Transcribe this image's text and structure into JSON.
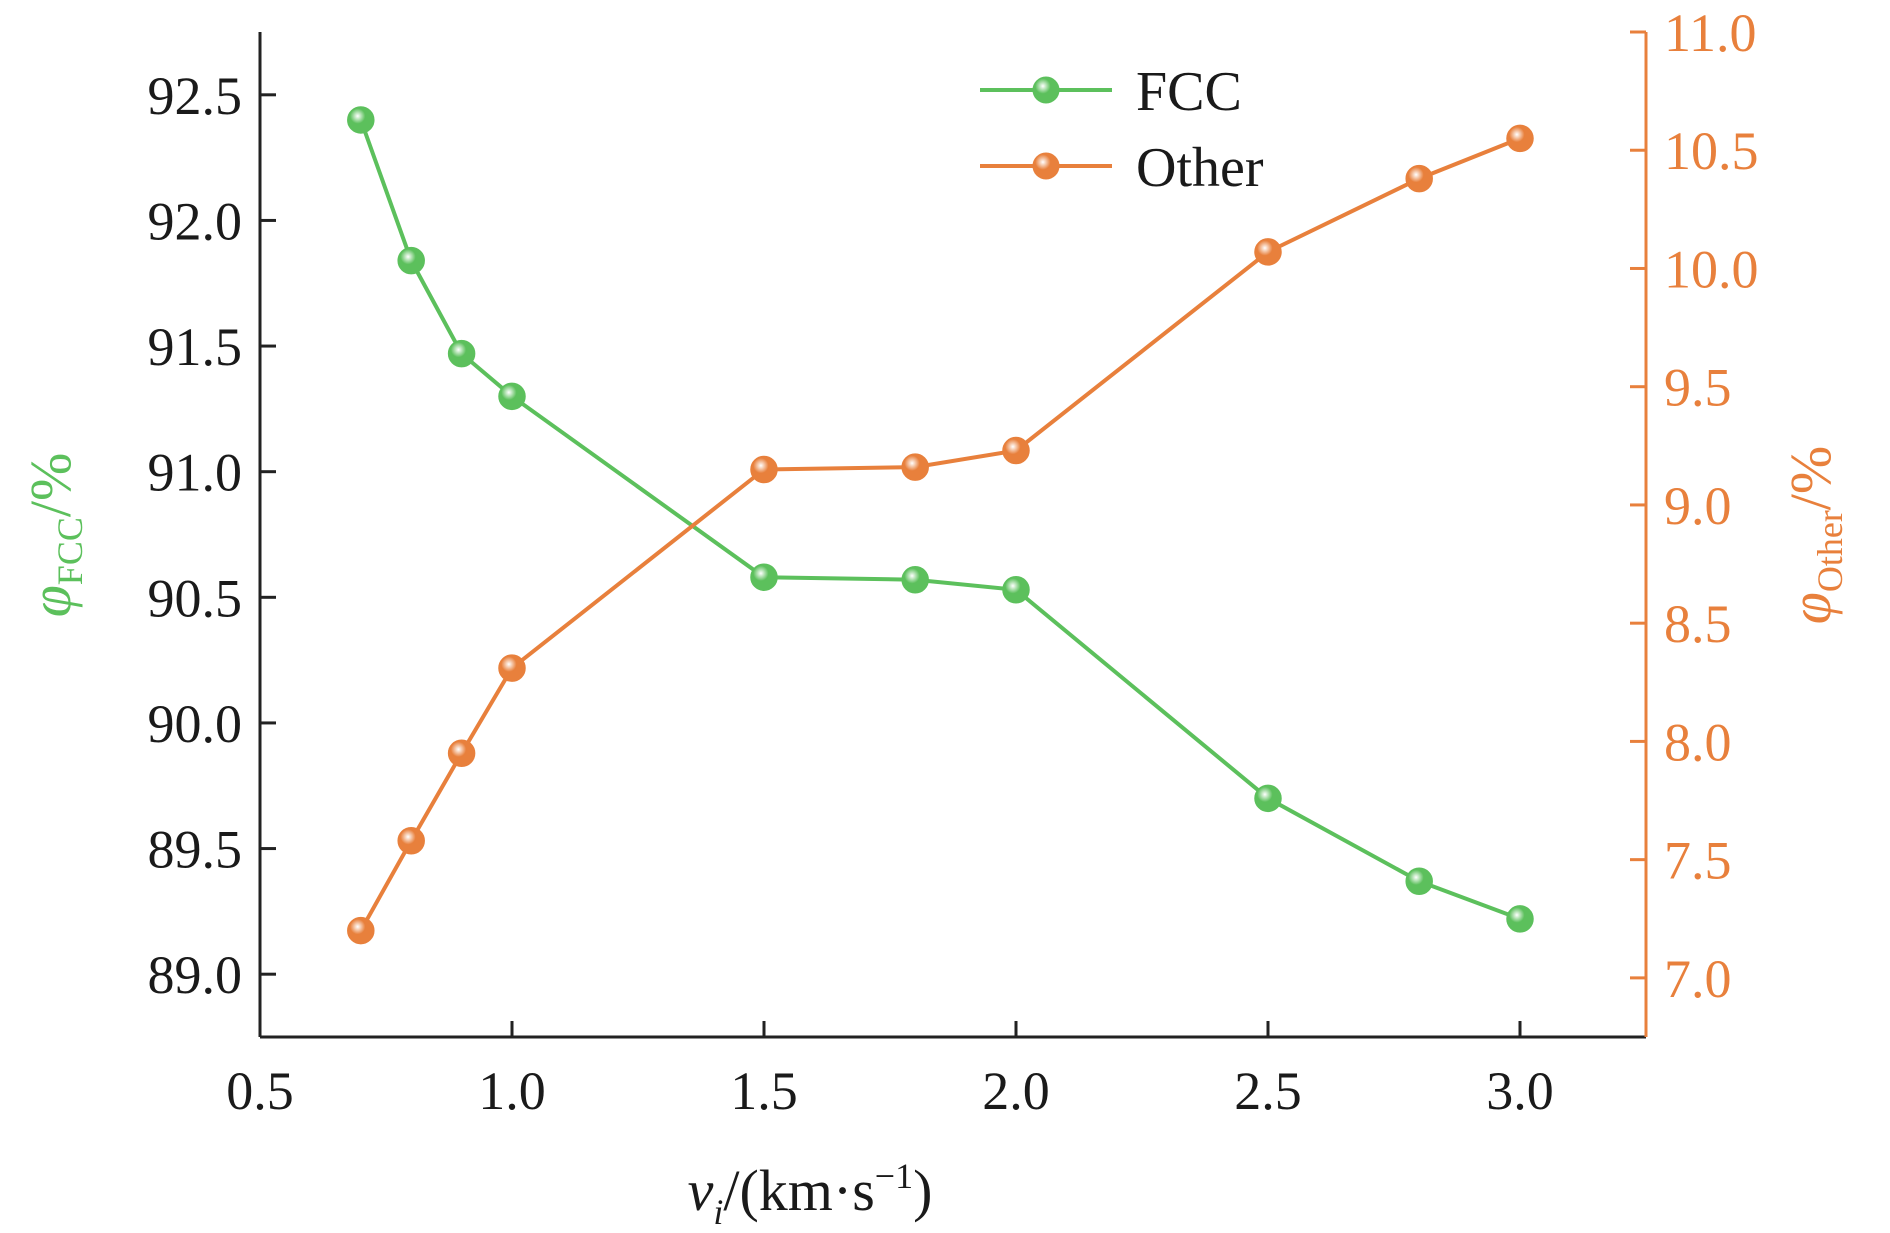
{
  "chart_data": {
    "type": "line",
    "x": [
      0.7,
      0.8,
      0.9,
      1.0,
      1.5,
      1.8,
      2.0,
      2.5,
      2.8,
      3.0
    ],
    "series": [
      {
        "name": "FCC",
        "axis": "left",
        "color": "#5cc05c",
        "values": [
          92.4,
          91.84,
          91.47,
          91.3,
          90.58,
          90.57,
          90.53,
          89.7,
          89.37,
          89.22
        ]
      },
      {
        "name": "Other",
        "axis": "right",
        "color": "#e8803c",
        "values": [
          7.2,
          7.58,
          7.95,
          8.31,
          9.15,
          9.16,
          9.23,
          10.07,
          10.38,
          10.55
        ]
      }
    ],
    "xlabel": {
      "var": "v",
      "sub": "i",
      "unit": "/(km·s",
      "sup": "−1",
      "close": ")"
    },
    "ylabel_left": {
      "var": "φ",
      "sub": "FCC",
      "unit": "/%"
    },
    "ylabel_right": {
      "var": "φ",
      "sub": "Other",
      "unit": "/%"
    },
    "xlim": [
      0.5,
      3.25
    ],
    "ylim_left": [
      88.75,
      92.75
    ],
    "ylim_right": [
      6.75,
      11.0
    ],
    "xticks": [
      "0.5",
      "1.0",
      "1.5",
      "2.0",
      "2.5",
      "3.0"
    ],
    "yticks_left": [
      "89.0",
      "89.5",
      "90.0",
      "90.5",
      "91.0",
      "91.5",
      "92.0",
      "92.5"
    ],
    "yticks_right": [
      "7.0",
      "7.5",
      "8.0",
      "8.5",
      "9.0",
      "9.5",
      "10.0",
      "10.5",
      "11.0"
    ],
    "legend_position": "top-center",
    "grid": false,
    "left_axis_color": "#5cc05c",
    "right_axis_color": "#e8803c"
  }
}
